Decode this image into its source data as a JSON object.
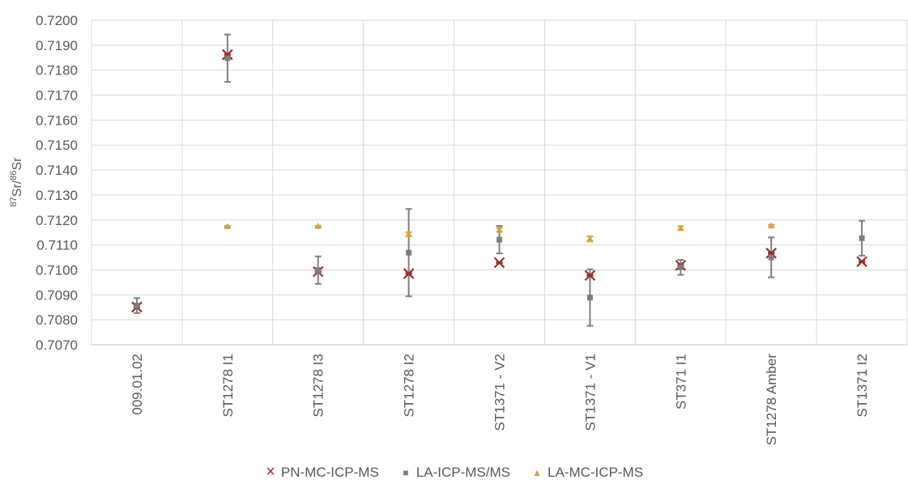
{
  "chart_data": {
    "type": "scatter",
    "ylabel": {
      "sup1": "87",
      "t1": "Sr/",
      "sup2": "86",
      "t2": "Sr"
    },
    "ylim": [
      0.707,
      0.72
    ],
    "ytick_step": 0.001,
    "grid": true,
    "legend_position": "bottom",
    "categories": [
      "009.01.02",
      "ST1278 I1",
      "ST1278 I3",
      "ST1278 I2",
      "ST1371 - V2",
      "ST1371 - V1",
      "ST371 I1",
      "ST1278 Amber",
      "ST1371 I2"
    ],
    "series": [
      {
        "name": "PN-MC-ICP-MS",
        "marker": "x",
        "color": "#9B2E2E",
        "values": [
          0.70851,
          0.71862,
          0.70993,
          0.70985,
          0.71029,
          0.70978,
          0.71018,
          0.71067,
          0.71033
        ],
        "errors": [
          2e-05,
          2e-05,
          2e-05,
          2e-05,
          2e-05,
          2e-05,
          2e-05,
          2e-05,
          2e-05
        ]
      },
      {
        "name": "LA-ICP-MS/MS",
        "marker": "square",
        "color": "#7F7F7F",
        "values": [
          0.70857,
          0.71848,
          0.70999,
          0.71069,
          0.71121,
          0.70889,
          0.7101,
          0.7105,
          0.71127
        ],
        "errors": [
          0.0003,
          0.00095,
          0.00055,
          0.00175,
          0.00055,
          0.00113,
          0.0003,
          0.0008,
          0.0007
        ]
      },
      {
        "name": "LA-MC-ICP-MS",
        "marker": "triangle",
        "color": "#D4A23C",
        "values": [
          null,
          0.71173,
          0.71174,
          0.71143,
          0.7116,
          0.71124,
          0.71167,
          0.71176,
          null
        ],
        "errors": [
          0,
          3e-05,
          3e-05,
          8e-05,
          8e-05,
          0.0001,
          8e-05,
          5e-05,
          0
        ]
      }
    ]
  }
}
